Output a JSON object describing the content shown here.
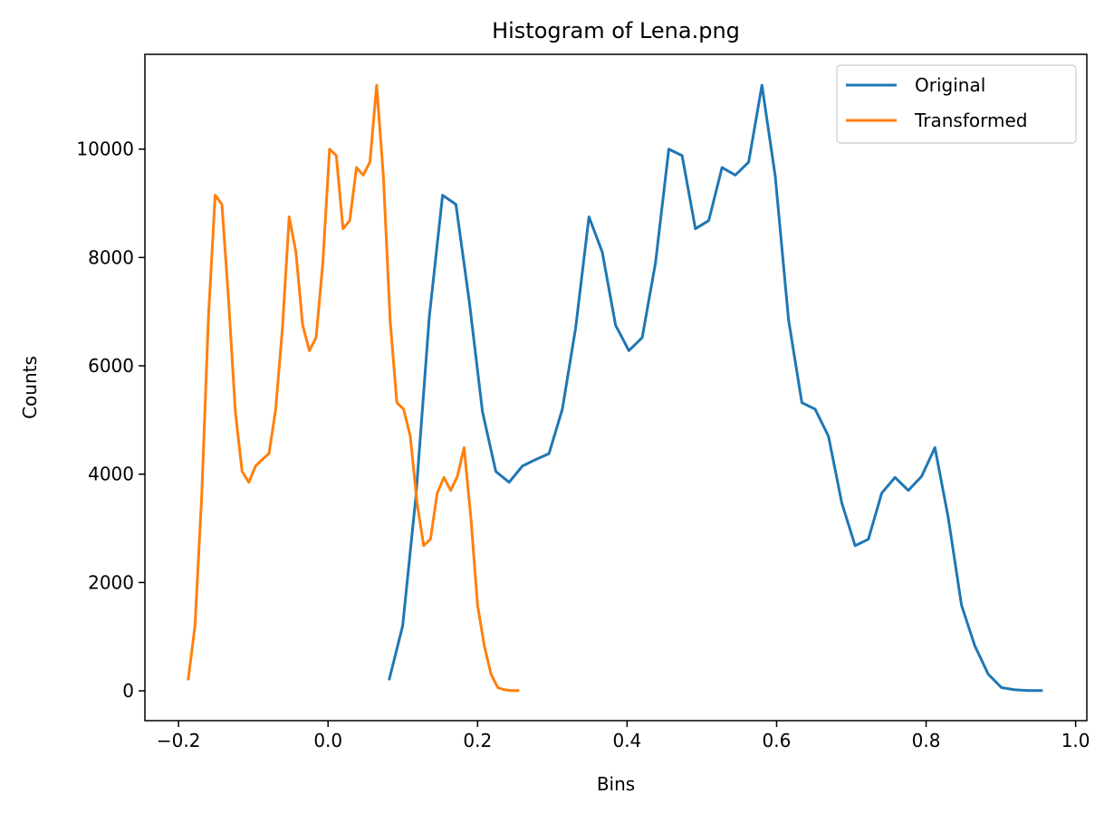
{
  "chart_data": {
    "type": "line",
    "title": "Histogram of Lena.png",
    "xlabel": "Bins",
    "ylabel": "Counts",
    "xlim": [
      -0.245,
      1.015
    ],
    "ylim": [
      -550,
      11750
    ],
    "xticks": [
      -0.2,
      0.0,
      0.2,
      0.4,
      0.6,
      0.8,
      1.0
    ],
    "xtick_labels": [
      "−0.2",
      "0.0",
      "0.2",
      "0.4",
      "0.6",
      "0.8",
      "1.0"
    ],
    "yticks": [
      0,
      2000,
      4000,
      6000,
      8000,
      10000
    ],
    "ytick_labels": [
      "0",
      "2000",
      "4000",
      "6000",
      "8000",
      "10000"
    ],
    "grid": false,
    "legend_position": "top-right",
    "series": [
      {
        "name": "Original",
        "color": "#1f77b4",
        "x": [
          0.082,
          0.0998,
          0.1176,
          0.1354,
          0.1532,
          0.171,
          0.1888,
          0.2066,
          0.2244,
          0.2422,
          0.26,
          0.2778,
          0.2956,
          0.3134,
          0.3312,
          0.349,
          0.3668,
          0.3846,
          0.4024,
          0.4202,
          0.438,
          0.4558,
          0.4736,
          0.4914,
          0.5092,
          0.527,
          0.5448,
          0.5626,
          0.5804,
          0.5982,
          0.616,
          0.6338,
          0.6516,
          0.6694,
          0.6872,
          0.705,
          0.7228,
          0.7406,
          0.7584,
          0.7762,
          0.794,
          0.8118,
          0.8296,
          0.8474,
          0.8652,
          0.883,
          0.9008,
          0.9186,
          0.9364,
          0.9542
        ],
        "y": [
          220,
          1200,
          3600,
          6900,
          9150,
          8980,
          7200,
          5150,
          4050,
          3850,
          4150,
          4270,
          4380,
          5200,
          6700,
          8750,
          8100,
          6750,
          6280,
          6520,
          7900,
          10000,
          9880,
          8530,
          8680,
          9660,
          9520,
          9760,
          11180,
          9500,
          6850,
          5320,
          5200,
          4700,
          3470,
          2680,
          2800,
          3650,
          3940,
          3700,
          3960,
          4490,
          3200,
          1580,
          830,
          310,
          60,
          20,
          5,
          5
        ]
      },
      {
        "name": "Transformed",
        "color": "#ff7f0e",
        "x": [
          -0.187,
          -0.178,
          -0.169,
          -0.16,
          -0.151,
          -0.142,
          -0.133,
          -0.124,
          -0.115,
          -0.106,
          -0.097,
          -0.088,
          -0.079,
          -0.07,
          -0.061,
          -0.052,
          -0.043,
          -0.034,
          -0.025,
          -0.016,
          -0.007,
          0.002,
          0.011,
          0.02,
          0.029,
          0.038,
          0.047,
          0.056,
          0.065,
          0.074,
          0.083,
          0.092,
          0.101,
          0.11,
          0.119,
          0.128,
          0.137,
          0.146,
          0.155,
          0.164,
          0.173,
          0.182,
          0.191,
          0.2,
          0.209,
          0.218,
          0.227,
          0.236,
          0.245,
          0.254
        ],
        "y": [
          220,
          1200,
          3600,
          6900,
          9150,
          8980,
          7200,
          5150,
          4050,
          3850,
          4150,
          4270,
          4380,
          5200,
          6700,
          8750,
          8100,
          6750,
          6280,
          6520,
          7900,
          10000,
          9880,
          8530,
          8680,
          9660,
          9520,
          9760,
          11180,
          9500,
          6850,
          5320,
          5200,
          4700,
          3470,
          2680,
          2800,
          3650,
          3940,
          3700,
          3960,
          4490,
          3200,
          1580,
          830,
          310,
          60,
          20,
          5,
          5
        ]
      }
    ]
  }
}
